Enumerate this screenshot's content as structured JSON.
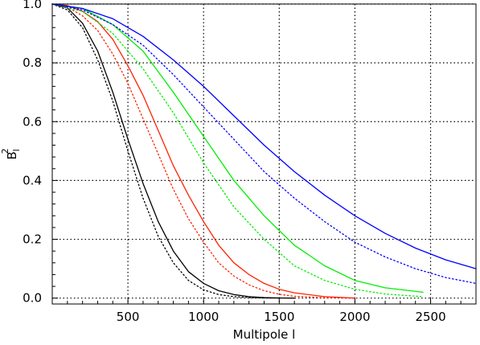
{
  "chart_data": {
    "type": "line",
    "title": "",
    "xlabel": "Multipole l",
    "ylabel": {
      "base": "B",
      "subscript": "l",
      "superscript": "2"
    },
    "xlim": [
      0,
      2800
    ],
    "ylim": [
      -0.02,
      1.0
    ],
    "xticks": [
      500,
      1000,
      1500,
      2000,
      2500
    ],
    "xtick_labels": [
      "500",
      "1000",
      "1500",
      "2000",
      "2500"
    ],
    "yticks": [
      0.0,
      0.2,
      0.4,
      0.6,
      0.8,
      1.0
    ],
    "ytick_labels": [
      "0.0",
      "0.2",
      "0.4",
      "0.6",
      "0.8",
      "1.0"
    ],
    "grid": true,
    "grid_style": "dotted",
    "legend": "none",
    "series": [
      {
        "color": "#000000",
        "style": "solid",
        "x": [
          0,
          100,
          200,
          300,
          400,
          500,
          600,
          700,
          800,
          900,
          1000,
          1100,
          1200,
          1300,
          1400,
          1500,
          1600
        ],
        "y": [
          1.0,
          0.987,
          0.935,
          0.84,
          0.7,
          0.54,
          0.39,
          0.26,
          0.16,
          0.09,
          0.05,
          0.025,
          0.012,
          0.005,
          0.002,
          0.0005,
          0.0
        ]
      },
      {
        "color": "#000000",
        "style": "dotted",
        "x": [
          0,
          100,
          200,
          300,
          400,
          500,
          600,
          700,
          800,
          900,
          1000,
          1100,
          1200,
          1300,
          1400,
          1500
        ],
        "y": [
          1.0,
          0.98,
          0.92,
          0.81,
          0.67,
          0.5,
          0.34,
          0.21,
          0.12,
          0.06,
          0.028,
          0.012,
          0.005,
          0.002,
          0.0005,
          0.0
        ]
      },
      {
        "color": "#ff2200",
        "style": "solid",
        "x": [
          0,
          100,
          200,
          300,
          400,
          500,
          600,
          700,
          800,
          900,
          1000,
          1100,
          1200,
          1300,
          1400,
          1500,
          1600,
          1800,
          2000
        ],
        "y": [
          1.0,
          0.995,
          0.975,
          0.94,
          0.88,
          0.79,
          0.69,
          0.57,
          0.45,
          0.35,
          0.26,
          0.18,
          0.12,
          0.08,
          0.05,
          0.03,
          0.018,
          0.005,
          0.0
        ]
      },
      {
        "color": "#ff2200",
        "style": "dotted",
        "x": [
          0,
          100,
          200,
          300,
          400,
          500,
          600,
          700,
          800,
          900,
          1000,
          1100,
          1200,
          1300,
          1400,
          1500,
          1600,
          1800,
          2000
        ],
        "y": [
          1.0,
          0.99,
          0.96,
          0.91,
          0.83,
          0.73,
          0.61,
          0.49,
          0.37,
          0.27,
          0.19,
          0.12,
          0.075,
          0.045,
          0.025,
          0.013,
          0.006,
          0.001,
          0.0
        ]
      },
      {
        "color": "#00ee00",
        "style": "solid",
        "x": [
          0,
          200,
          400,
          600,
          800,
          1000,
          1200,
          1400,
          1600,
          1800,
          2000,
          2200,
          2450
        ],
        "y": [
          1.0,
          0.985,
          0.93,
          0.84,
          0.7,
          0.55,
          0.4,
          0.28,
          0.18,
          0.11,
          0.06,
          0.035,
          0.02
        ]
      },
      {
        "color": "#00ee00",
        "style": "dotted",
        "x": [
          0,
          200,
          400,
          600,
          800,
          1000,
          1200,
          1400,
          1600,
          1800,
          2000,
          2200,
          2450
        ],
        "y": [
          1.0,
          0.975,
          0.9,
          0.78,
          0.63,
          0.46,
          0.31,
          0.2,
          0.11,
          0.06,
          0.03,
          0.014,
          0.005
        ]
      },
      {
        "color": "#0000ff",
        "style": "solid",
        "x": [
          0,
          200,
          400,
          600,
          800,
          1000,
          1200,
          1400,
          1600,
          1800,
          2000,
          2200,
          2400,
          2600,
          2800
        ],
        "y": [
          1.0,
          0.985,
          0.95,
          0.89,
          0.81,
          0.72,
          0.62,
          0.52,
          0.43,
          0.35,
          0.28,
          0.22,
          0.17,
          0.13,
          0.1
        ]
      },
      {
        "color": "#0000ff",
        "style": "dotted",
        "x": [
          0,
          200,
          400,
          600,
          800,
          1000,
          1200,
          1400,
          1600,
          1800,
          2000,
          2200,
          2400,
          2600,
          2800
        ],
        "y": [
          1.0,
          0.98,
          0.93,
          0.86,
          0.76,
          0.65,
          0.54,
          0.43,
          0.34,
          0.26,
          0.19,
          0.14,
          0.1,
          0.07,
          0.05
        ]
      }
    ]
  }
}
